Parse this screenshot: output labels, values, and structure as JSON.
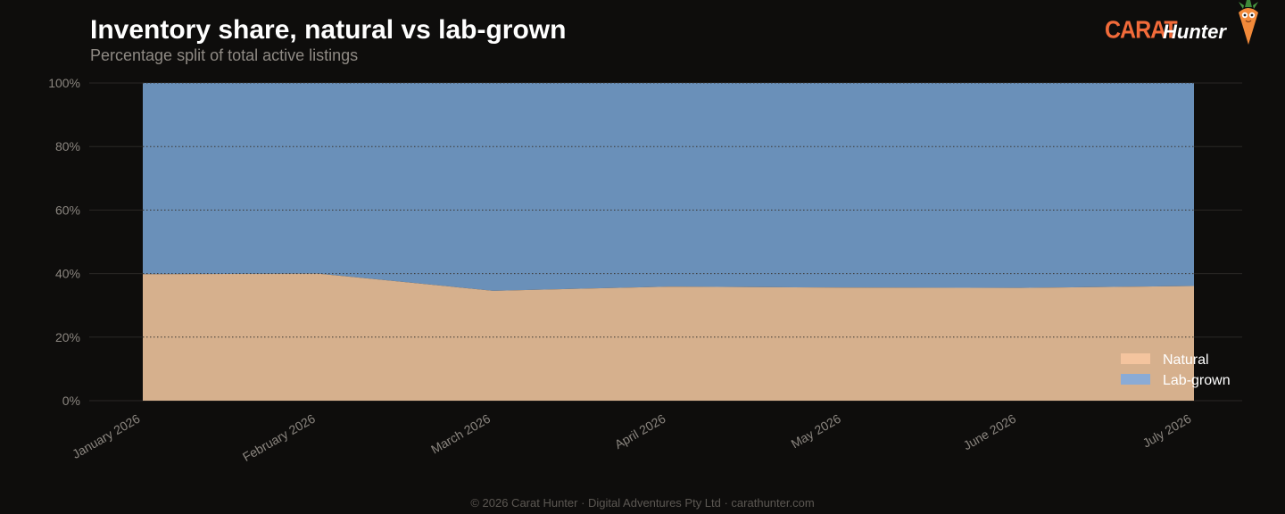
{
  "header": {
    "title": "Inventory share, natural vs lab-grown",
    "subtitle": "Percentage split of total active listings"
  },
  "logo": {
    "carat": "CARAT",
    "hunter": "Hunter",
    "mascot_icon": "carrot-mascot-icon"
  },
  "colors": {
    "natural": "#d6b08d",
    "lab_grown": "#6a90b9",
    "natural_legend": "#f4c49e",
    "lab_grown_legend": "#8aabd6",
    "grid": "#2a2826"
  },
  "chart_data": {
    "type": "area",
    "stacked": true,
    "normalized": true,
    "x": [
      "January 2026",
      "February 2026",
      "March 2026",
      "April 2026",
      "May 2026",
      "June 2026",
      "July 2026"
    ],
    "series": [
      {
        "name": "Natural",
        "values": [
          39.8,
          40.0,
          34.6,
          35.9,
          35.6,
          35.5,
          36.1
        ]
      },
      {
        "name": "Lab-grown",
        "values": [
          60.2,
          60.0,
          65.4,
          64.1,
          64.4,
          64.5,
          63.9
        ]
      }
    ],
    "ylim": [
      0,
      100
    ],
    "yticks": [
      0,
      20,
      40,
      60,
      80,
      100
    ],
    "ytick_labels": [
      "0%",
      "20%",
      "40%",
      "60%",
      "80%",
      "100%"
    ],
    "grid": true,
    "legend_position": "bottom-right"
  },
  "footer": {
    "text": "© 2026 Carat Hunter · Digital Adventures Pty Ltd · carathunter.com"
  }
}
